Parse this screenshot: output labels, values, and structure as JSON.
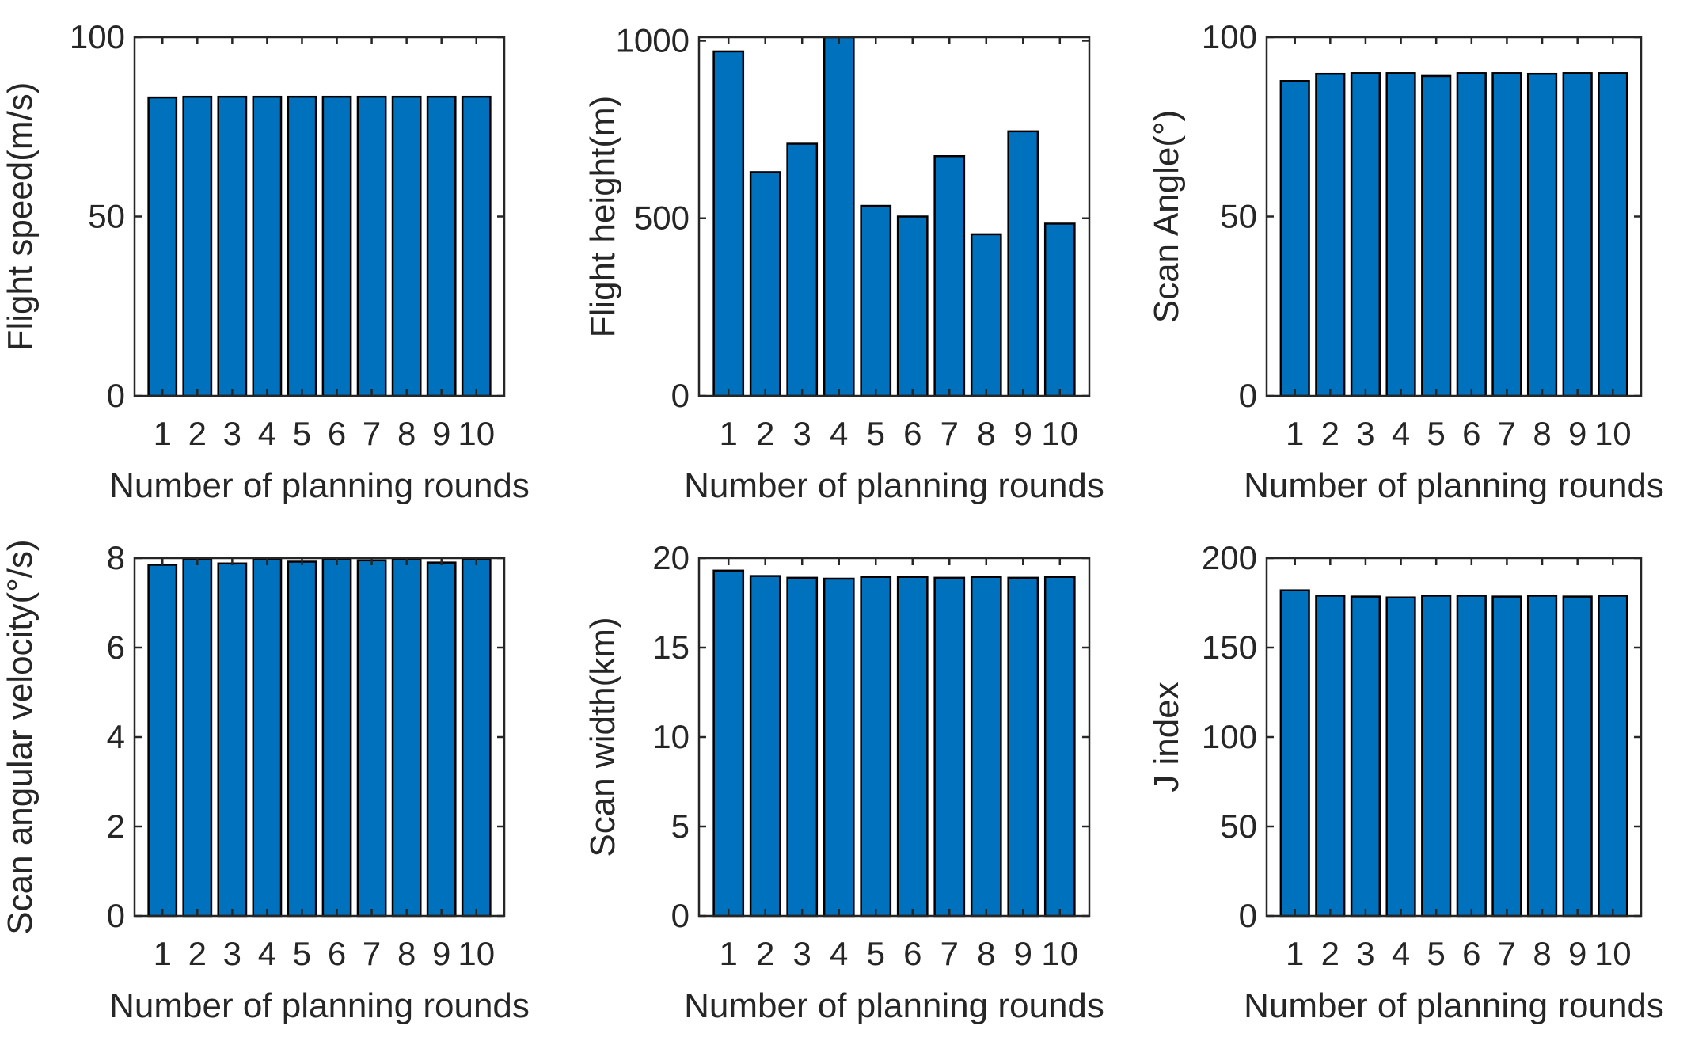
{
  "colors": {
    "bar_fill": "#0072bd",
    "bar_edge": "#000000",
    "axis": "#262626",
    "background": "#ffffff"
  },
  "chart_data": [
    {
      "type": "bar",
      "categories": [
        "1",
        "2",
        "3",
        "4",
        "5",
        "6",
        "7",
        "8",
        "9",
        "10"
      ],
      "values": [
        83.2,
        83.4,
        83.4,
        83.4,
        83.4,
        83.4,
        83.4,
        83.4,
        83.4,
        83.4
      ],
      "xlabel": "Number of planning rounds",
      "ylabel": "Flight speed(m/s)",
      "ylim": [
        0,
        100
      ],
      "yticks": [
        0,
        50,
        100
      ],
      "ytick_labels": [
        "0",
        "50",
        "100"
      ],
      "grid": false
    },
    {
      "type": "bar",
      "categories": [
        "1",
        "2",
        "3",
        "4",
        "5",
        "6",
        "7",
        "8",
        "9",
        "10"
      ],
      "values": [
        970,
        630,
        710,
        1040,
        535,
        505,
        675,
        455,
        745,
        485
      ],
      "xlabel": "Number of planning rounds",
      "ylabel": "Flight height(m)",
      "ylim": [
        0,
        1010
      ],
      "yticks": [
        0,
        500,
        1000
      ],
      "ytick_labels": [
        "0",
        "500",
        "1000"
      ],
      "grid": false
    },
    {
      "type": "bar",
      "categories": [
        "1",
        "2",
        "3",
        "4",
        "5",
        "6",
        "7",
        "8",
        "9",
        "10"
      ],
      "values": [
        87.8,
        89.8,
        90.0,
        90.0,
        89.2,
        90.0,
        90.0,
        89.8,
        90.0,
        90.0
      ],
      "xlabel": "Number of planning rounds",
      "ylabel": "Scan Angle(°)",
      "ylim": [
        0,
        100
      ],
      "yticks": [
        0,
        50,
        100
      ],
      "ytick_labels": [
        "0",
        "50",
        "100"
      ],
      "grid": false
    },
    {
      "type": "bar",
      "categories": [
        "1",
        "2",
        "3",
        "4",
        "5",
        "6",
        "7",
        "8",
        "9",
        "10"
      ],
      "values": [
        7.85,
        7.98,
        7.88,
        7.98,
        7.92,
        7.98,
        7.95,
        7.98,
        7.9,
        7.98
      ],
      "xlabel": "Number of planning rounds",
      "ylabel": "Scan angular velocity(°/s)",
      "ylim": [
        0,
        8
      ],
      "yticks": [
        0,
        2,
        4,
        6,
        8
      ],
      "ytick_labels": [
        "0",
        "2",
        "4",
        "6",
        "8"
      ],
      "grid": false
    },
    {
      "type": "bar",
      "categories": [
        "1",
        "2",
        "3",
        "4",
        "5",
        "6",
        "7",
        "8",
        "9",
        "10"
      ],
      "values": [
        19.3,
        19.0,
        18.9,
        18.85,
        18.95,
        18.95,
        18.9,
        18.95,
        18.9,
        18.95
      ],
      "xlabel": "Number of planning rounds",
      "ylabel": "Scan width(km)",
      "ylim": [
        0,
        20
      ],
      "yticks": [
        0,
        5,
        10,
        15,
        20
      ],
      "ytick_labels": [
        "0",
        "5",
        "10",
        "15",
        "20"
      ],
      "grid": false
    },
    {
      "type": "bar",
      "categories": [
        "1",
        "2",
        "3",
        "4",
        "5",
        "6",
        "7",
        "8",
        "9",
        "10"
      ],
      "values": [
        182,
        179,
        178.5,
        178,
        179,
        179,
        178.5,
        179,
        178.5,
        179
      ],
      "xlabel": "Number of planning rounds",
      "ylabel": "J index",
      "ylim": [
        0,
        200
      ],
      "yticks": [
        0,
        50,
        100,
        150,
        200
      ],
      "ytick_labels": [
        "0",
        "50",
        "100",
        "150",
        "200"
      ],
      "grid": false
    }
  ]
}
